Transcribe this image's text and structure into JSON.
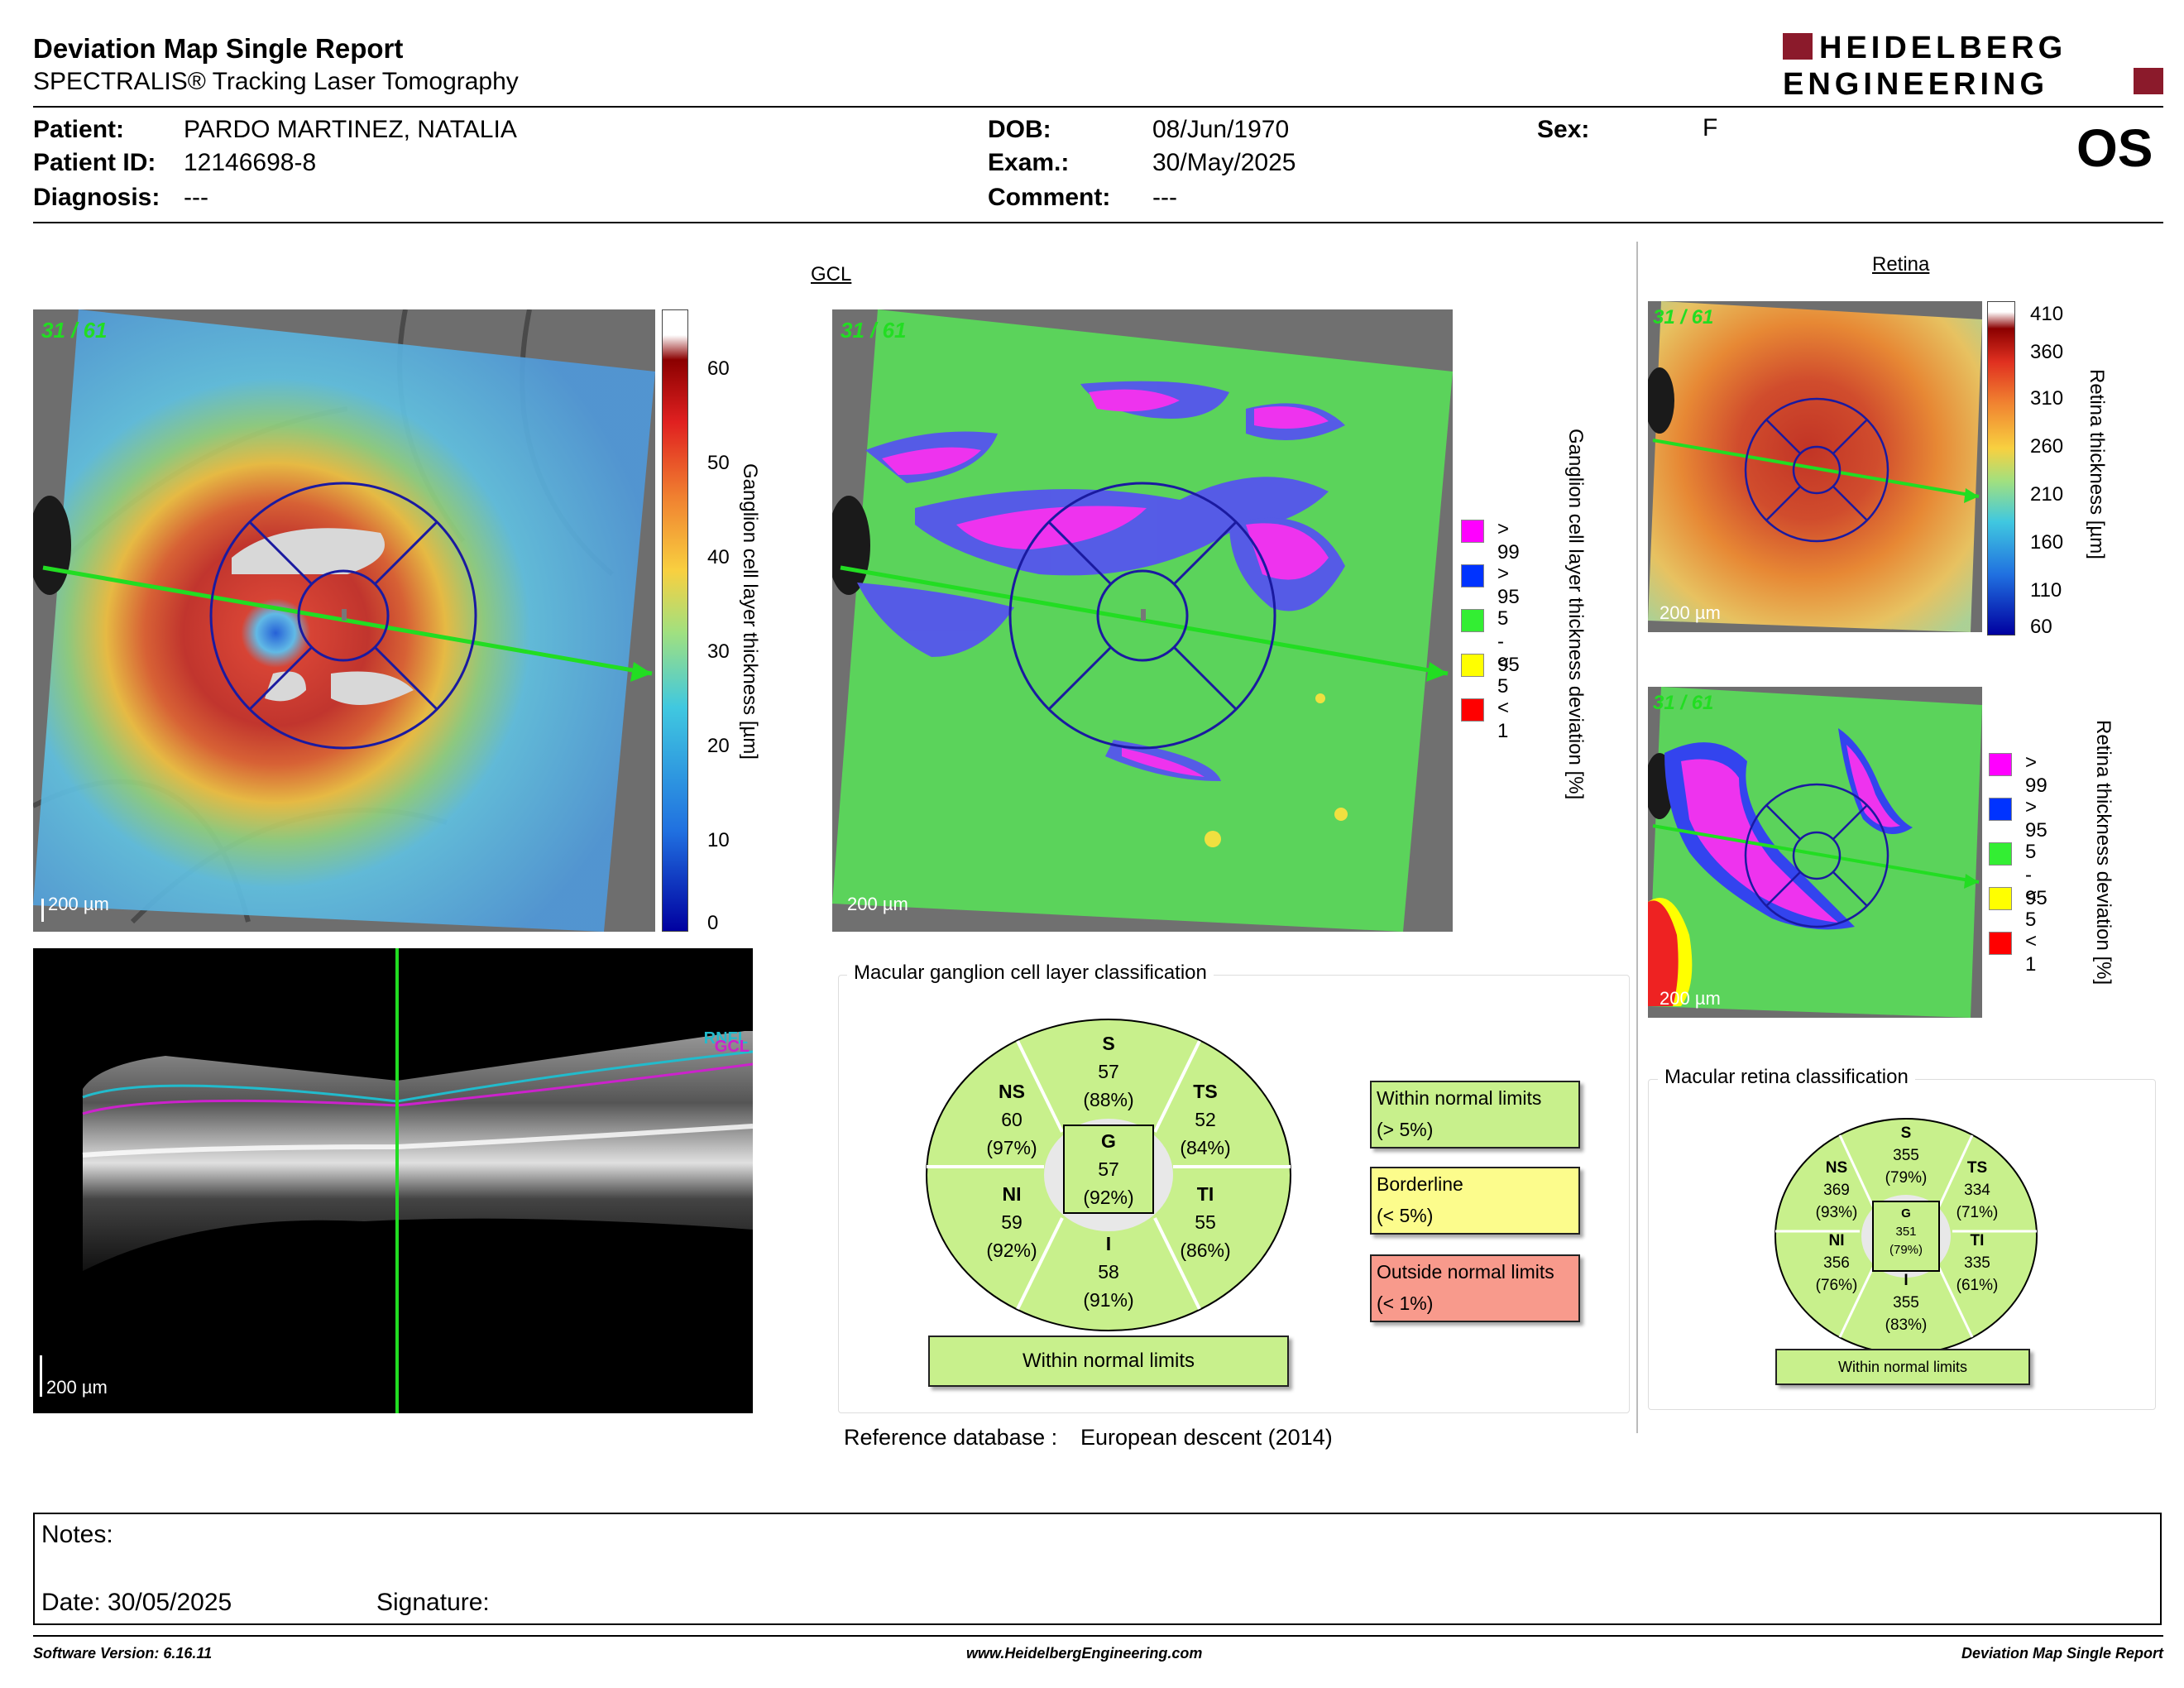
{
  "header": {
    "title": "Deviation Map Single Report",
    "subtitle": "SPECTRALIS® Tracking Laser Tomography",
    "logo_line1": "HEIDELBERG",
    "logo_line2": "ENGINEERING",
    "eye": "OS"
  },
  "patient": {
    "patient_label": "Patient:",
    "patient_value": "PARDO MARTINEZ, NATALIA",
    "id_label": "Patient ID:",
    "id_value": "12146698-8",
    "diagnosis_label": "Diagnosis:",
    "diagnosis_value": "---",
    "dob_label": "DOB:",
    "dob_value": "08/Jun/1970",
    "exam_label": "Exam.:",
    "exam_value": "30/May/2025",
    "comment_label": "Comment:",
    "comment_value": "---",
    "sex_label": "Sex:",
    "sex_value": "F"
  },
  "gcl": {
    "section_label": "GCL",
    "frame_label": "31 / 61",
    "scale_label": "200 µm",
    "thickness_axis_label": "Ganglion cell layer thickness [µm]",
    "thickness_ticks": [
      "60",
      "50",
      "40",
      "30",
      "20",
      "10",
      "0"
    ],
    "deviation_axis_label": "Ganglion cell layer thickness deviation [%]",
    "deviation_legend": [
      {
        "label": "> 99",
        "color": "#ff00ff"
      },
      {
        "label": "> 95",
        "color": "#0033ff"
      },
      {
        "label": "5 - 95",
        "color": "#33ee33"
      },
      {
        "label": "< 5",
        "color": "#ffff00"
      },
      {
        "label": "< 1",
        "color": "#ff0000"
      }
    ],
    "oct_scale_label": "200 µm",
    "oct_layer_labels": [
      "RNFL",
      "GCL"
    ]
  },
  "gcl_classification": {
    "title": "Macular ganglion cell layer classification",
    "sectors": {
      "S": {
        "name": "S",
        "value": "57",
        "pct": "(88%)"
      },
      "NS": {
        "name": "NS",
        "value": "60",
        "pct": "(97%)"
      },
      "TS": {
        "name": "TS",
        "value": "52",
        "pct": "(84%)"
      },
      "G": {
        "name": "G",
        "value": "57",
        "pct": "(92%)"
      },
      "NI": {
        "name": "NI",
        "value": "59",
        "pct": "(92%)"
      },
      "TI": {
        "name": "TI",
        "value": "55",
        "pct": "(86%)"
      },
      "I": {
        "name": "I",
        "value": "58",
        "pct": "(91%)"
      }
    },
    "result": "Within normal limits",
    "key": [
      {
        "line1": "Within normal limits",
        "line2": "(> 5%)",
        "color": "#c8f08c"
      },
      {
        "line1": "Borderline",
        "line2": "(< 5%)",
        "color": "#fcfc8c"
      },
      {
        "line1": "Outside normal limits",
        "line2": "(< 1%)",
        "color": "#f89a8c"
      }
    ],
    "reference_label": "Reference database :",
    "reference_value": "European descent (2014)"
  },
  "retina": {
    "section_label": "Retina",
    "frame_label": "31 / 61",
    "scale_label": "200 µm",
    "thickness_axis_label": "Retina thickness [µm]",
    "thickness_ticks": [
      "410",
      "360",
      "310",
      "260",
      "210",
      "160",
      "110",
      "60"
    ],
    "deviation_axis_label": "Retina thickness deviation [%]",
    "deviation_legend": [
      {
        "label": "> 99",
        "color": "#ff00ff"
      },
      {
        "label": "> 95",
        "color": "#0033ff"
      },
      {
        "label": "5 - 95",
        "color": "#33ee33"
      },
      {
        "label": "< 5",
        "color": "#ffff00"
      },
      {
        "label": "< 1",
        "color": "#ff0000"
      }
    ]
  },
  "retina_classification": {
    "title": "Macular retina classification",
    "sectors": {
      "S": {
        "name": "S",
        "value": "355",
        "pct": "(79%)"
      },
      "NS": {
        "name": "NS",
        "value": "369",
        "pct": "(93%)"
      },
      "TS": {
        "name": "TS",
        "value": "334",
        "pct": "(71%)"
      },
      "G": {
        "name": "G",
        "value": "351",
        "pct": "(79%)"
      },
      "NI": {
        "name": "NI",
        "value": "356",
        "pct": "(76%)"
      },
      "TI": {
        "name": "TI",
        "value": "335",
        "pct": "(61%)"
      },
      "I": {
        "name": "I",
        "value": "355",
        "pct": "(83%)"
      }
    },
    "result": "Within normal limits"
  },
  "notes": {
    "notes_label": "Notes:",
    "date_label": "Date: 30/05/2025",
    "signature_label": "Signature:"
  },
  "footer": {
    "software": "Software Version: 6.16.11",
    "website": "www.HeidelbergEngineering.com",
    "report": "Deviation Map Single Report"
  }
}
